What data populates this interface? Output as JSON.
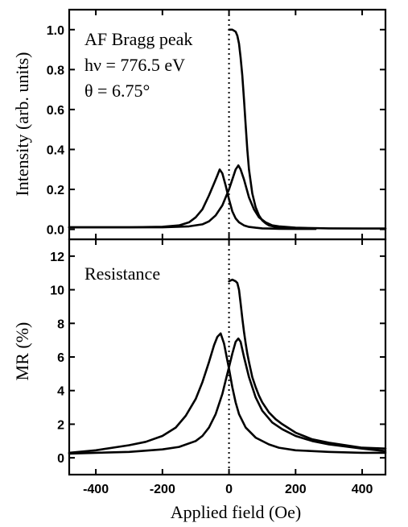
{
  "chart_data": [
    {
      "type": "line",
      "panel": "top",
      "ylabel": "Intensity (arb. units)",
      "xlim": [
        -480,
        470
      ],
      "ylim": [
        -0.05,
        1.1
      ],
      "yticks": [
        0.0,
        0.2,
        0.4,
        0.6,
        0.8,
        1.0
      ],
      "ytick_labels": [
        "0.0",
        "0.2",
        "0.4",
        "0.6",
        "0.8",
        "1.0"
      ],
      "annotations": [
        "AF Bragg peak",
        "hν = 776.5 eV",
        "θ = 6.75°"
      ],
      "series": [
        {
          "x": [
            -480,
            -300,
            -200,
            -150,
            -120,
            -100,
            -80,
            -60,
            -45,
            -35,
            -28,
            -20,
            -10,
            0,
            10,
            20,
            30,
            45,
            60,
            80,
            100,
            120,
            150,
            200,
            260
          ],
          "y": [
            0.01,
            0.01,
            0.013,
            0.02,
            0.035,
            0.06,
            0.1,
            0.17,
            0.23,
            0.27,
            0.3,
            0.28,
            0.22,
            0.15,
            0.09,
            0.055,
            0.035,
            0.02,
            0.012,
            0.008,
            0.005,
            0.004,
            0.003,
            0.002,
            0.002
          ]
        },
        {
          "x": [
            -480,
            -200,
            -120,
            -80,
            -60,
            -40,
            -20,
            -10,
            0,
            10,
            20,
            28,
            35,
            45,
            60,
            75,
            90,
            110,
            130,
            150,
            200,
            300,
            400,
            470
          ],
          "y": [
            0.01,
            0.01,
            0.015,
            0.025,
            0.04,
            0.07,
            0.12,
            0.16,
            0.2,
            0.25,
            0.3,
            0.32,
            0.3,
            0.25,
            0.16,
            0.1,
            0.06,
            0.035,
            0.02,
            0.015,
            0.008,
            0.005,
            0.004,
            0.004
          ]
        },
        {
          "x": [
            0,
            10,
            20,
            25,
            30,
            35,
            40,
            45,
            50,
            55,
            60,
            70,
            80,
            90,
            100,
            110,
            120,
            140,
            170,
            200
          ],
          "y": [
            1.0,
            1.0,
            0.99,
            0.97,
            0.93,
            0.86,
            0.77,
            0.65,
            0.52,
            0.4,
            0.3,
            0.18,
            0.11,
            0.07,
            0.045,
            0.03,
            0.02,
            0.012,
            0.007,
            0.005
          ]
        }
      ]
    },
    {
      "type": "line",
      "panel": "bottom",
      "ylabel": "MR (%)",
      "xlabel": "Applied field (Oe)",
      "xlim": [
        -480,
        470
      ],
      "ylim": [
        -1,
        13
      ],
      "xticks": [
        -400,
        -200,
        0,
        200,
        400
      ],
      "xtick_labels": [
        "-400",
        "-200",
        "0",
        "200",
        "400"
      ],
      "yticks": [
        0,
        2,
        4,
        6,
        8,
        10,
        12
      ],
      "ytick_labels": [
        "0",
        "2",
        "4",
        "6",
        "8",
        "10",
        "12"
      ],
      "annotations": [
        "Resistance"
      ],
      "series": [
        {
          "x": [
            -480,
            -400,
            -300,
            -250,
            -200,
            -160,
            -130,
            -100,
            -80,
            -60,
            -45,
            -35,
            -25,
            -15,
            -5,
            0,
            10,
            20,
            30,
            50,
            80,
            120,
            150,
            200,
            300,
            400,
            470
          ],
          "y": [
            0.3,
            0.45,
            0.75,
            0.95,
            1.3,
            1.8,
            2.5,
            3.5,
            4.5,
            5.7,
            6.7,
            7.2,
            7.4,
            6.8,
            5.8,
            5.3,
            4.2,
            3.3,
            2.6,
            1.8,
            1.2,
            0.8,
            0.6,
            0.45,
            0.35,
            0.3,
            0.3
          ]
        },
        {
          "x": [
            -480,
            -400,
            -300,
            -200,
            -150,
            -100,
            -80,
            -60,
            -40,
            -20,
            -10,
            0,
            10,
            20,
            28,
            35,
            45,
            60,
            80,
            100,
            130,
            160,
            200,
            250,
            300,
            400,
            470
          ],
          "y": [
            0.25,
            0.3,
            0.35,
            0.5,
            0.65,
            1.0,
            1.3,
            1.8,
            2.6,
            3.8,
            4.6,
            5.4,
            6.2,
            6.9,
            7.1,
            6.9,
            6.0,
            4.8,
            3.6,
            2.8,
            2.1,
            1.7,
            1.3,
            1.0,
            0.8,
            0.55,
            0.4
          ]
        },
        {
          "x": [
            0,
            10,
            20,
            25,
            30,
            35,
            40,
            45,
            50,
            55,
            60,
            70,
            80,
            90,
            100,
            120,
            140,
            160,
            200,
            250,
            300,
            350,
            400,
            470
          ],
          "y": [
            10.5,
            10.6,
            10.5,
            10.4,
            10.0,
            9.2,
            8.3,
            7.5,
            6.8,
            6.2,
            5.7,
            4.8,
            4.2,
            3.7,
            3.3,
            2.7,
            2.3,
            2.0,
            1.5,
            1.1,
            0.9,
            0.75,
            0.6,
            0.55
          ]
        }
      ]
    }
  ]
}
